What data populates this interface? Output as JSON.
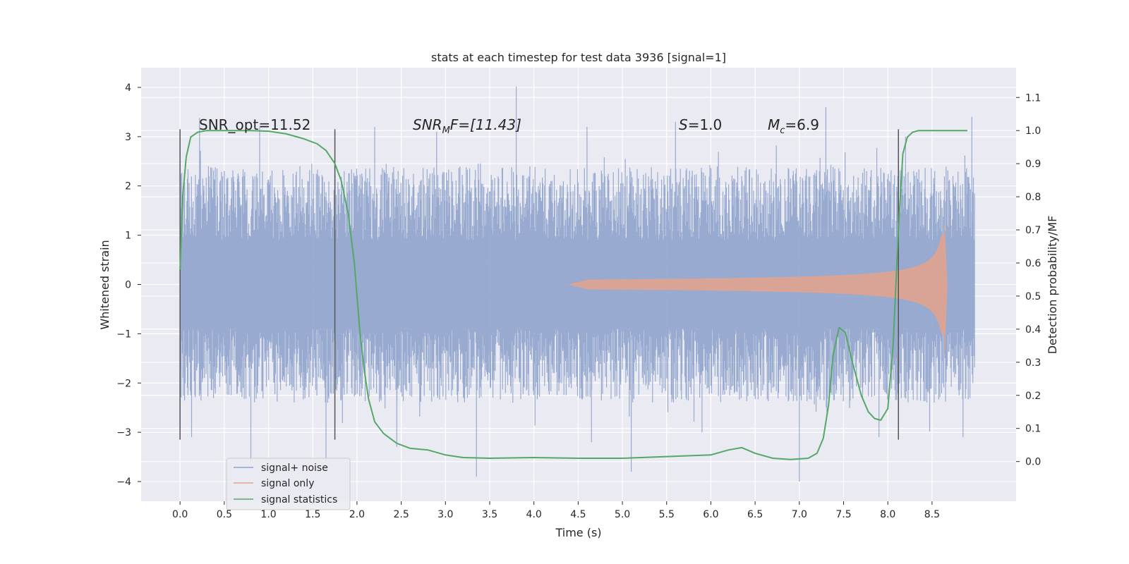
{
  "chart_data": {
    "type": "line",
    "title": "stats at each timestep for test data 3936 [signal=1]",
    "xlabel": "Time (s)",
    "ylabel": "Whitened strain",
    "y2label": "Detection probability/MF",
    "xlim": [
      -0.44,
      9.45
    ],
    "ylim": [
      -4.4,
      4.4
    ],
    "y2lim": [
      -0.12,
      1.19
    ],
    "xticks": [
      0.0,
      0.5,
      1.0,
      1.5,
      2.0,
      2.5,
      3.0,
      3.5,
      4.0,
      4.5,
      5.0,
      5.5,
      6.0,
      6.5,
      7.0,
      7.5,
      8.0,
      8.5
    ],
    "xtick_labels": [
      "0.0",
      "0.5",
      "1.0",
      "1.5",
      "2.0",
      "2.5",
      "3.0",
      "3.5",
      "4.0",
      "4.5",
      "5.0",
      "5.5",
      "6.0",
      "6.5",
      "7.0",
      "7.5",
      "8.0",
      "8.5"
    ],
    "yticks": [
      4,
      3,
      2,
      1,
      0,
      -1,
      -2,
      -3,
      -4
    ],
    "ytick_labels": [
      "4",
      "3",
      "2",
      "1",
      "0",
      "−1",
      "−2",
      "−3",
      "−4"
    ],
    "y2ticks": [
      1.1,
      1.0,
      0.9,
      0.8,
      0.7,
      0.6,
      0.5,
      0.4,
      0.3,
      0.2,
      0.1,
      0.0
    ],
    "y2tick_labels": [
      "1.1",
      "1.0",
      "0.9",
      "0.8",
      "0.7",
      "0.6",
      "0.5",
      "0.4",
      "0.3",
      "0.2",
      "0.1",
      "0.0"
    ],
    "grid": true,
    "legend_position": "lower-left",
    "annotations": {
      "snr_opt": "SNR_opt=11.52",
      "snr_mf": "SNR",
      "snr_mf_sub": "M",
      "snr_mf_tail": "F=[11.43]",
      "s_sym": "S",
      "s_val": "=1.0",
      "mc_sym": "M",
      "mc_sub": "c",
      "mc_val": "=6.9"
    },
    "vlines_x": [
      0.0,
      1.75,
      8.12
    ],
    "series": [
      {
        "name": "signal+ noise",
        "color": "#8fa3cc",
        "x_range": [
          0.0,
          8.98
        ],
        "envelope": [
          2.0,
          -2.0
        ],
        "peaks_high": [
          [
            0.22,
            3.38
          ],
          [
            0.9,
            3.2
          ],
          [
            1.75,
            3.1
          ],
          [
            2.2,
            3.2
          ],
          [
            2.9,
            3.1
          ],
          [
            3.8,
            4.02
          ],
          [
            4.6,
            3.2
          ],
          [
            5.6,
            3.3
          ],
          [
            7.3,
            3.6
          ],
          [
            8.2,
            3.0
          ],
          [
            8.95,
            3.4
          ]
        ],
        "peaks_low": [
          [
            0.13,
            -3.1
          ],
          [
            0.8,
            -3.6
          ],
          [
            1.65,
            -3.6
          ],
          [
            2.45,
            -3.3
          ],
          [
            3.35,
            -3.9
          ],
          [
            4.65,
            -3.2
          ],
          [
            5.1,
            -3.8
          ],
          [
            5.9,
            -3.0
          ],
          [
            7.0,
            -4.0
          ],
          [
            7.9,
            -3.1
          ],
          [
            8.85,
            -3.1
          ]
        ]
      },
      {
        "name": "signal only",
        "color": "#e4a38b",
        "chirp": {
          "t_start": 4.4,
          "t_peak": 8.66,
          "peak_amplitude": [
            1.2,
            -1.4
          ]
        }
      },
      {
        "name": "signal statistics",
        "color": "#55a868",
        "axis": "right",
        "x": [
          0.0,
          0.03,
          0.07,
          0.12,
          0.2,
          0.3,
          0.5,
          0.8,
          1.0,
          1.2,
          1.4,
          1.55,
          1.65,
          1.75,
          1.82,
          1.9,
          1.97,
          2.03,
          2.08,
          2.13,
          2.2,
          2.3,
          2.45,
          2.6,
          2.8,
          3.0,
          3.2,
          3.5,
          4.0,
          4.5,
          5.0,
          5.5,
          6.0,
          6.2,
          6.35,
          6.5,
          6.7,
          6.9,
          7.1,
          7.2,
          7.27,
          7.33,
          7.38,
          7.45,
          7.52,
          7.6,
          7.7,
          7.78,
          7.85,
          7.92,
          8.0,
          8.06,
          8.12,
          8.17,
          8.22,
          8.28,
          8.35,
          8.5,
          8.7,
          8.9
        ],
        "y": [
          0.58,
          0.8,
          0.92,
          0.98,
          0.995,
          1.0,
          1.0,
          1.0,
          0.998,
          0.99,
          0.975,
          0.96,
          0.94,
          0.9,
          0.85,
          0.75,
          0.6,
          0.4,
          0.28,
          0.19,
          0.12,
          0.085,
          0.055,
          0.04,
          0.035,
          0.02,
          0.012,
          0.01,
          0.012,
          0.01,
          0.01,
          0.015,
          0.02,
          0.035,
          0.042,
          0.025,
          0.01,
          0.006,
          0.01,
          0.025,
          0.07,
          0.17,
          0.32,
          0.405,
          0.39,
          0.3,
          0.2,
          0.15,
          0.13,
          0.125,
          0.16,
          0.35,
          0.7,
          0.93,
          0.98,
          0.995,
          1.0,
          1.0,
          1.0,
          1.0
        ]
      }
    ]
  }
}
